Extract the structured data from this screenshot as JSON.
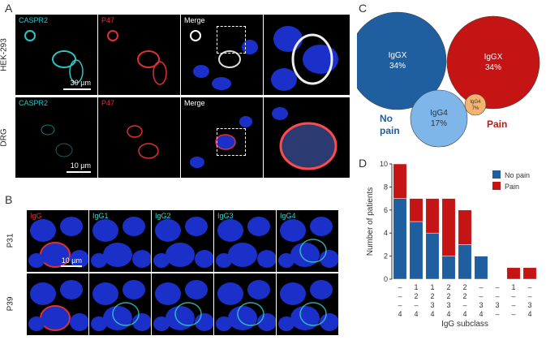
{
  "panels": {
    "A": {
      "letter": "A",
      "rows": [
        {
          "label": "HEK-293",
          "channels": [
            "CASPR2",
            "P47",
            "Merge"
          ],
          "scalebar": "30 µm"
        },
        {
          "label": "DRG",
          "channels": [
            "CASPR2",
            "P47",
            "Merge"
          ],
          "scalebar": "10 µm"
        }
      ],
      "channel_colors": {
        "CASPR2": "#2ec4c4",
        "P47": "#e03030",
        "Merge": "#ffffff"
      }
    },
    "B": {
      "letter": "B",
      "columns": [
        "IgG",
        "IgG1",
        "IgG2",
        "IgG3",
        "IgG4"
      ],
      "column_colors": [
        "#e03030",
        "#39d3c8",
        "#39d3c8",
        "#39d3c8",
        "#39d3c8"
      ],
      "rows": [
        "P31",
        "P39"
      ],
      "scalebar": "10 µm"
    },
    "C": {
      "letter": "C"
    },
    "D": {
      "letter": "D"
    }
  },
  "chart_data": [
    {
      "type": "venn",
      "circles": [
        {
          "label": "IgGX",
          "value_label": "34%",
          "value": 34,
          "color": "#1f5fa0"
        },
        {
          "label": "IgGX",
          "value_label": "34%",
          "value": 34,
          "color": "#c41414"
        },
        {
          "label": "IgG4",
          "value_label": "17%",
          "value": 17,
          "color": "#7fb6ea"
        },
        {
          "label": "IgG4",
          "value_label": "7%",
          "value": 7,
          "color": "#f4b36e"
        }
      ],
      "group_labels": [
        {
          "text": "No\npain",
          "color": "#1f5fa0"
        },
        {
          "text": "Pain",
          "color": "#c41414"
        }
      ]
    },
    {
      "type": "bar",
      "stacked": true,
      "ylabel": "Number of patients",
      "xlabel": "IgG subclass",
      "ylim": [
        0,
        10
      ],
      "yticks": [
        0,
        2,
        4,
        6,
        8,
        10
      ],
      "categories": [
        [
          "–",
          "–",
          "–",
          "4"
        ],
        [
          "1",
          "2",
          "–",
          "4"
        ],
        [
          "1",
          "2",
          "3",
          "4"
        ],
        [
          "2",
          "2",
          "3",
          "4"
        ],
        [
          "2",
          "2",
          "–",
          "4"
        ],
        [
          "–",
          "–",
          "3",
          "4"
        ],
        [
          "–",
          "–",
          "3",
          "–"
        ],
        [
          "1",
          "–",
          "–",
          "–"
        ],
        [
          "–",
          "–",
          "3",
          "4"
        ]
      ],
      "series": [
        {
          "name": "No pain",
          "color": "#1f5fa0",
          "values": [
            7,
            5,
            4,
            2,
            3,
            2,
            0,
            0,
            0
          ]
        },
        {
          "name": "Pain",
          "color": "#c41414",
          "values": [
            3,
            2,
            3,
            5,
            3,
            0,
            0,
            1,
            1
          ]
        }
      ],
      "legend_position": "top-right"
    }
  ]
}
